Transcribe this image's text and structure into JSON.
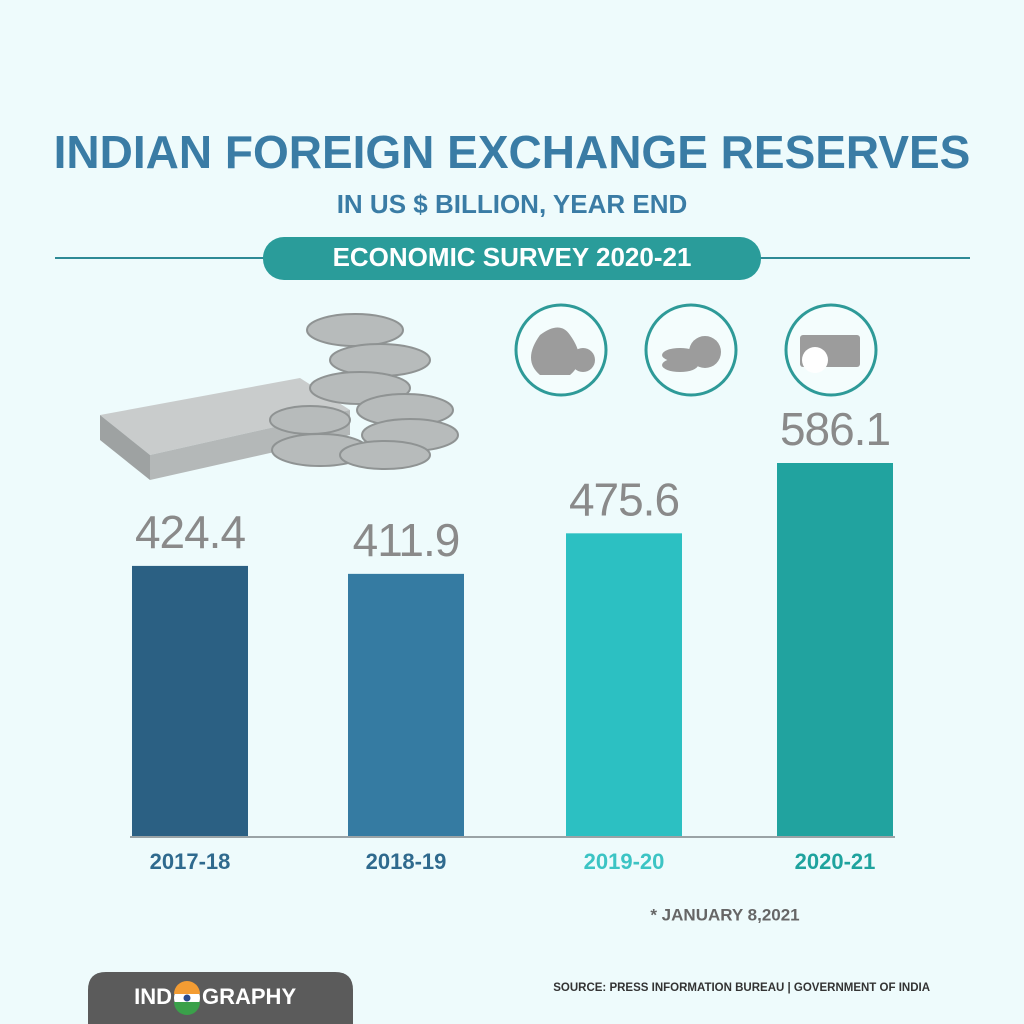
{
  "chart_data": {
    "type": "bar",
    "title": "INDIAN FOREIGN EXCHANGE RESERVES",
    "subtitle": "IN US $ BILLION, YEAR END",
    "badge": "ECONOMIC SURVEY 2020-21",
    "categories": [
      "2017-18",
      "2018-19",
      "2019-20",
      "2020-21"
    ],
    "values": [
      424.4,
      411.9,
      475.6,
      586.1
    ],
    "colors": [
      "#2b6083",
      "#357ba2",
      "#2cc0c2",
      "#21a39f"
    ],
    "label_colors": [
      "#2f6a8e",
      "#2f6a8e",
      "#3cc4c4",
      "#1fa39e"
    ],
    "note": "* JANUARY 8,2021",
    "source": "SOURCE: PRESS INFORMATION BUREAU | GOVERNMENT OF INDIA",
    "brand_left": "IND",
    "brand_right": "GRAPHY"
  }
}
